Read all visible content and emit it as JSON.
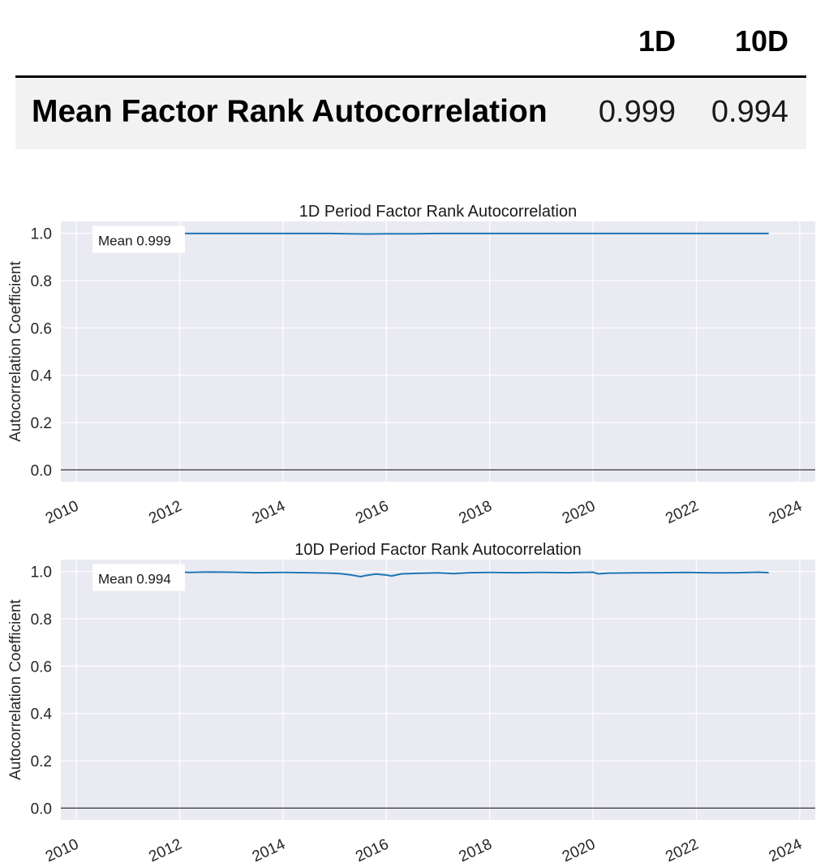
{
  "table": {
    "columns": [
      "1D",
      "10D"
    ],
    "row_label": "Mean Factor Rank Autocorrelation",
    "values": [
      "0.999",
      "0.994"
    ]
  },
  "chart_data": [
    {
      "type": "line",
      "title": "1D Period Factor Rank Autocorrelation",
      "xlabel": "",
      "ylabel": "Autocorrelation Coefficient",
      "xlim": [
        2009.7,
        2024.3
      ],
      "ylim": [
        -0.05,
        1.05
      ],
      "xticks": [
        "2010",
        "2012",
        "2014",
        "2016",
        "2018",
        "2020",
        "2022",
        "2024"
      ],
      "yticks": [
        "0.0",
        "0.2",
        "0.4",
        "0.6",
        "0.8",
        "1.0"
      ],
      "annotation": "Mean 0.999",
      "grid": true,
      "series": [
        {
          "color": "#1f77b4",
          "x": [
            2011.9,
            2013.0,
            2014.0,
            2014.9,
            2015.3,
            2015.6,
            2016.0,
            2016.5,
            2017.0,
            2018.0,
            2019.0,
            2020.0,
            2021.0,
            2022.0,
            2023.0,
            2023.4
          ],
          "y": [
            0.999,
            0.999,
            0.999,
            0.999,
            0.998,
            0.997,
            0.998,
            0.998,
            0.999,
            0.999,
            0.999,
            0.999,
            0.999,
            0.999,
            0.999,
            0.999
          ]
        }
      ],
      "hlines": [
        {
          "y": 0.0,
          "color": "#333333"
        }
      ]
    },
    {
      "type": "line",
      "title": "10D Period Factor Rank Autocorrelation",
      "xlabel": "",
      "ylabel": "Autocorrelation Coefficient",
      "xlim": [
        2009.7,
        2024.3
      ],
      "ylim": [
        -0.05,
        1.05
      ],
      "xticks": [
        "2010",
        "2012",
        "2014",
        "2016",
        "2018",
        "2020",
        "2022",
        "2024"
      ],
      "yticks": [
        "0.0",
        "0.2",
        "0.4",
        "0.6",
        "0.8",
        "1.0"
      ],
      "annotation": "Mean 0.994",
      "grid": true,
      "series": [
        {
          "color": "#1f77b4",
          "x": [
            2011.9,
            2012.2,
            2012.6,
            2013.0,
            2013.5,
            2014.0,
            2014.5,
            2014.9,
            2015.1,
            2015.3,
            2015.5,
            2015.6,
            2015.8,
            2016.0,
            2016.1,
            2016.3,
            2016.6,
            2017.0,
            2017.3,
            2017.6,
            2018.0,
            2018.5,
            2019.0,
            2019.5,
            2020.0,
            2020.1,
            2020.3,
            2020.8,
            2021.3,
            2021.8,
            2022.3,
            2022.8,
            2023.2,
            2023.4
          ],
          "y": [
            0.998,
            0.996,
            0.998,
            0.997,
            0.995,
            0.996,
            0.995,
            0.993,
            0.991,
            0.986,
            0.978,
            0.983,
            0.989,
            0.985,
            0.981,
            0.99,
            0.992,
            0.994,
            0.991,
            0.995,
            0.996,
            0.995,
            0.996,
            0.995,
            0.997,
            0.99,
            0.993,
            0.994,
            0.995,
            0.996,
            0.994,
            0.995,
            0.997,
            0.995
          ]
        }
      ],
      "hlines": [
        {
          "y": 0.0,
          "color": "#333333"
        }
      ]
    }
  ]
}
